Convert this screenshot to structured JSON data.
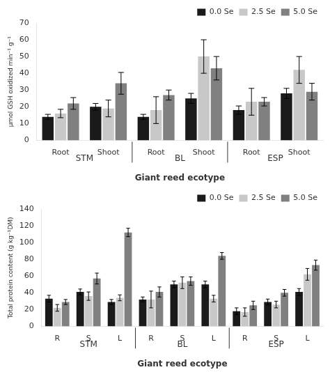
{
  "chart_data": [
    {
      "type": "bar",
      "categories": [
        "Root",
        "Shoot",
        "Root",
        "Shoot",
        "Root",
        "Shoot"
      ],
      "annotations": [
        "STM",
        "BL",
        "ESP"
      ],
      "xlabel": "Giant reed ecotype",
      "ylabel": "µmol GSH oxidized min⁻¹ g⁻¹",
      "ylim": [
        0,
        70
      ],
      "yticks": [
        0,
        10,
        20,
        30,
        40,
        50,
        60,
        70
      ],
      "grid": false,
      "legend": "upper right",
      "series": [
        {
          "name": "0.0 Se",
          "color": "#1a1a1a",
          "values": [
            14,
            20,
            14,
            25,
            18,
            28
          ],
          "errors": [
            1.5,
            2.0,
            1.5,
            3.0,
            2.5,
            3.0
          ]
        },
        {
          "name": "2.5 Se",
          "color": "#c8c8c8",
          "values": [
            16,
            19,
            18,
            50,
            23,
            42
          ],
          "errors": [
            2.5,
            5.0,
            8.0,
            10.0,
            8.0,
            8.0
          ]
        },
        {
          "name": "5.0 Se",
          "color": "#808080",
          "values": [
            22,
            34,
            27,
            43,
            23,
            29
          ],
          "errors": [
            3.5,
            6.5,
            3.0,
            7.0,
            2.5,
            5.0
          ]
        }
      ]
    },
    {
      "type": "bar",
      "categories": [
        "R",
        "S",
        "L",
        "R",
        "S",
        "L",
        "R",
        "S",
        "L"
      ],
      "annotations": [
        "STM",
        "BL",
        "ESP"
      ],
      "xlabel": "Giant reed ecotype",
      "ylabel": "Total protein content (g kg⁻¹DM)",
      "ylim": [
        0,
        140
      ],
      "yticks": [
        0,
        20,
        40,
        60,
        80,
        100,
        120,
        140
      ],
      "grid": false,
      "legend": "upper right",
      "series": [
        {
          "name": "0.0 Se",
          "color": "#1a1a1a",
          "values": [
            33,
            41,
            29,
            32,
            50,
            50,
            18,
            29,
            41
          ],
          "errors": [
            4.0,
            3.5,
            3.0,
            3.0,
            4.0,
            4.0,
            4.0,
            3.5,
            4.0
          ]
        },
        {
          "name": "2.5 Se",
          "color": "#c8c8c8",
          "values": [
            22,
            36,
            34,
            32,
            52,
            33,
            17,
            26,
            62
          ],
          "errors": [
            4.0,
            5.0,
            3.5,
            10.0,
            7.0,
            4.0,
            5.0,
            4.0,
            7.0
          ]
        },
        {
          "name": "5.0 Se",
          "color": "#808080",
          "values": [
            29,
            57,
            112,
            41,
            54,
            84,
            25,
            40,
            73
          ],
          "errors": [
            3.0,
            6.5,
            5.0,
            6.0,
            5.0,
            4.0,
            5.0,
            4.0,
            6.0
          ]
        }
      ]
    }
  ]
}
